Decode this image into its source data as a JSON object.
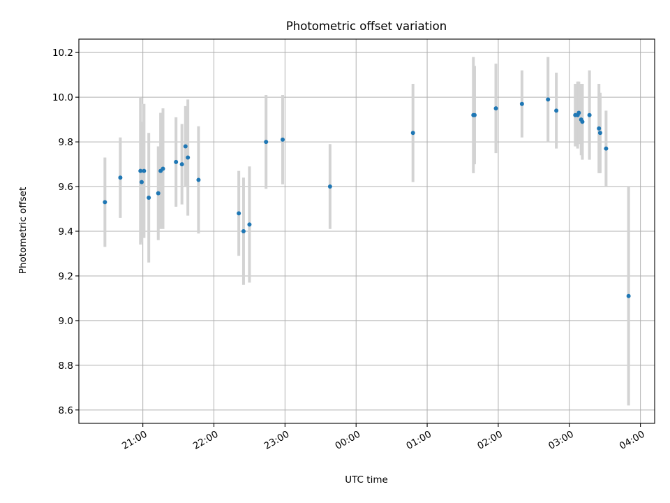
{
  "chart_data": {
    "type": "scatter",
    "title": "Photometric offset variation",
    "xlabel": "UTC time",
    "ylabel": "Photometric offset",
    "x_axis_type": "time",
    "x_range_hours": [
      20.1,
      28.2
    ],
    "ylim": [
      8.54,
      10.26
    ],
    "grid": true,
    "x_ticks": [
      {
        "label": "21:00",
        "h": 21
      },
      {
        "label": "22:00",
        "h": 22
      },
      {
        "label": "23:00",
        "h": 23
      },
      {
        "label": "00:00",
        "h": 24
      },
      {
        "label": "01:00",
        "h": 25
      },
      {
        "label": "02:00",
        "h": 26
      },
      {
        "label": "03:00",
        "h": 27
      },
      {
        "label": "04:00",
        "h": 28
      }
    ],
    "y_ticks": [
      {
        "label": "8.6",
        "v": 8.6
      },
      {
        "label": "8.8",
        "v": 8.8
      },
      {
        "label": "9.0",
        "v": 9.0
      },
      {
        "label": "9.2",
        "v": 9.2
      },
      {
        "label": "9.4",
        "v": 9.4
      },
      {
        "label": "9.6",
        "v": 9.6
      },
      {
        "label": "9.8",
        "v": 9.8
      },
      {
        "label": "10.0",
        "v": 10.0
      },
      {
        "label": "10.2",
        "v": 10.2
      }
    ],
    "colors": {
      "marker": "#1f77b4",
      "errorbar": "#d3d3d3",
      "grid": "#b0b0b0"
    },
    "series": [
      {
        "points": [
          {
            "time": "20:28",
            "y": 9.53,
            "err": 0.2
          },
          {
            "time": "20:41",
            "y": 9.64,
            "err": 0.18
          },
          {
            "time": "20:58",
            "y": 9.67,
            "err": 0.33
          },
          {
            "time": "20:59",
            "y": 9.62,
            "err": 0.27
          },
          {
            "time": "21:01",
            "y": 9.67,
            "err": 0.3
          },
          {
            "time": "21:05",
            "y": 9.55,
            "err": 0.29
          },
          {
            "time": "21:13",
            "y": 9.57,
            "err": 0.21
          },
          {
            "time": "21:15",
            "y": 9.67,
            "err": 0.26
          },
          {
            "time": "21:17",
            "y": 9.68,
            "err": 0.27
          },
          {
            "time": "21:28",
            "y": 9.71,
            "err": 0.2
          },
          {
            "time": "21:33",
            "y": 9.7,
            "err": 0.18
          },
          {
            "time": "21:36",
            "y": 9.78,
            "err": 0.18
          },
          {
            "time": "21:38",
            "y": 9.73,
            "err": 0.26
          },
          {
            "time": "21:47",
            "y": 9.63,
            "err": 0.24
          },
          {
            "time": "22:21",
            "y": 9.48,
            "err": 0.19
          },
          {
            "time": "22:25",
            "y": 9.4,
            "err": 0.24
          },
          {
            "time": "22:30",
            "y": 9.43,
            "err": 0.26
          },
          {
            "time": "22:44",
            "y": 9.8,
            "err": 0.21
          },
          {
            "time": "22:58",
            "y": 9.81,
            "err": 0.2
          },
          {
            "time": "23:38",
            "y": 9.6,
            "err": 0.19
          },
          {
            "time": "00:48",
            "y": 9.84,
            "err": 0.22
          },
          {
            "time": "01:39",
            "y": 9.92,
            "err": 0.26
          },
          {
            "time": "01:40",
            "y": 9.92,
            "err": 0.22
          },
          {
            "time": "01:58",
            "y": 9.95,
            "err": 0.2
          },
          {
            "time": "02:20",
            "y": 9.97,
            "err": 0.15
          },
          {
            "time": "02:42",
            "y": 9.99,
            "err": 0.19
          },
          {
            "time": "02:49",
            "y": 9.94,
            "err": 0.17
          },
          {
            "time": "03:05",
            "y": 9.92,
            "err": 0.14
          },
          {
            "time": "03:07",
            "y": 9.92,
            "err": 0.15
          },
          {
            "time": "03:08",
            "y": 9.93,
            "err": 0.14
          },
          {
            "time": "03:10",
            "y": 9.9,
            "err": 0.16
          },
          {
            "time": "03:11",
            "y": 9.89,
            "err": 0.17
          },
          {
            "time": "03:17",
            "y": 9.92,
            "err": 0.2
          },
          {
            "time": "03:25",
            "y": 9.86,
            "err": 0.2
          },
          {
            "time": "03:26",
            "y": 9.84,
            "err": 0.18
          },
          {
            "time": "03:31",
            "y": 9.77,
            "err": 0.17
          },
          {
            "time": "03:50",
            "y": 9.11,
            "err": 0.49
          }
        ]
      }
    ]
  }
}
